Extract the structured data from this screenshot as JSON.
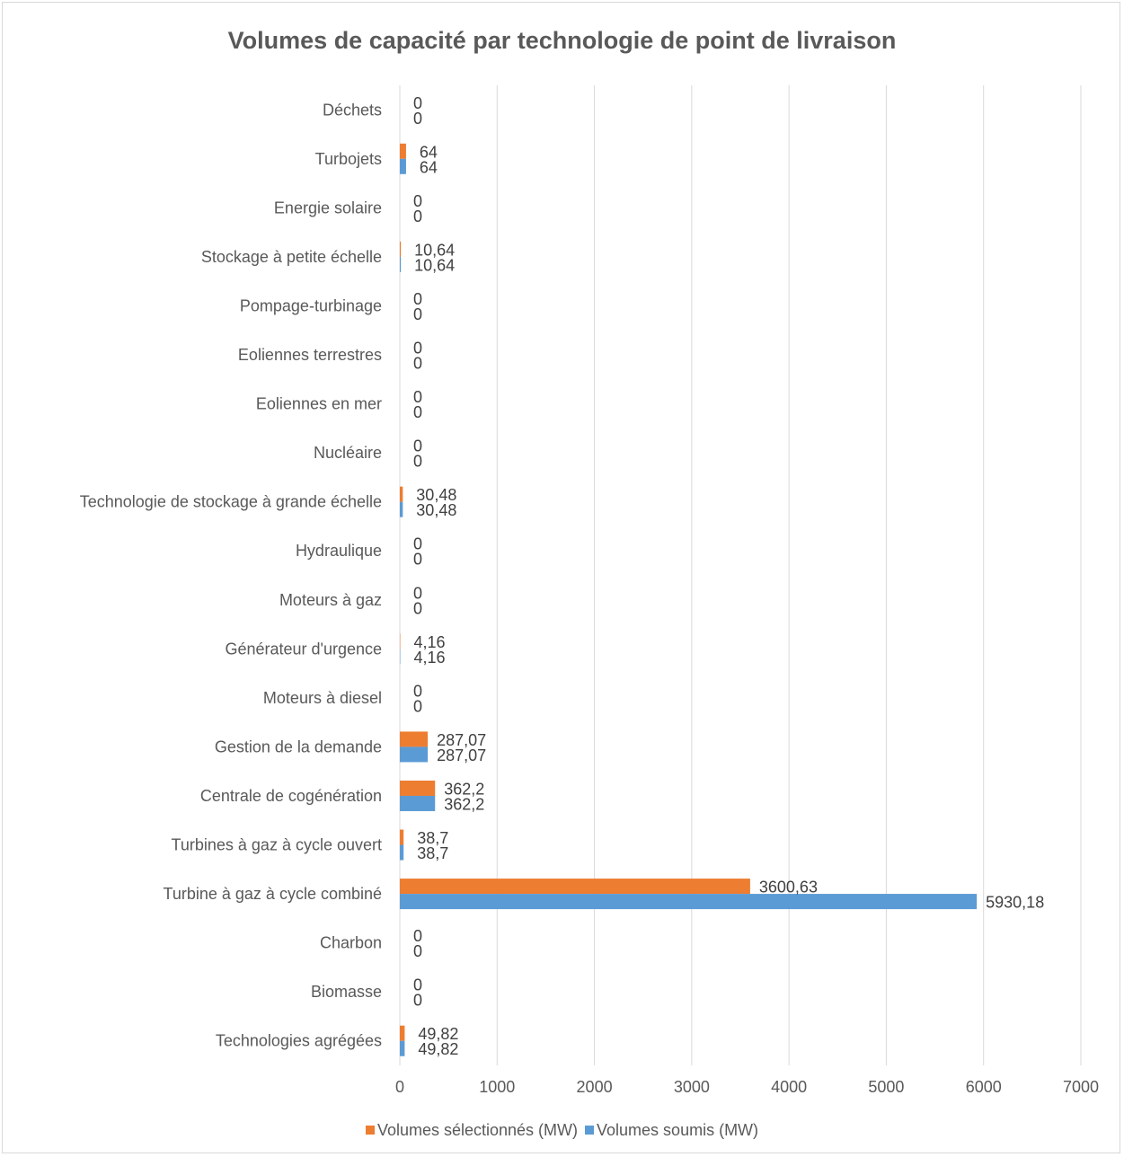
{
  "chart_data": {
    "type": "bar",
    "orientation": "horizontal",
    "title": "Volumes de capacité par technologie de point de livraison",
    "categories": [
      "Déchets",
      "Turbojets",
      "Energie solaire",
      "Stockage à petite échelle",
      "Pompage-turbinage",
      "Eoliennes terrestres",
      "Eoliennes en mer",
      "Nucléaire",
      "Technologie de stockage à grande échelle",
      "Hydraulique",
      "Moteurs à gaz",
      "Générateur d'urgence",
      "Moteurs à diesel",
      "Gestion de la demande",
      "Centrale de cogénération",
      "Turbines à gaz à cycle ouvert",
      "Turbine à gaz à cycle combiné",
      "Charbon",
      "Biomasse",
      "Technologies agrégées"
    ],
    "series": [
      {
        "name": "Volumes sélectionnés (MW)",
        "color": "#ed7d31",
        "values": [
          0,
          64,
          0,
          10.64,
          0,
          0,
          0,
          0,
          30.48,
          0,
          0,
          4.16,
          0,
          287.07,
          362.2,
          38.7,
          3600.63,
          0,
          0,
          49.82
        ],
        "labels": [
          "0",
          "64",
          "0",
          "10,64",
          "0",
          "0",
          "0",
          "0",
          "30,48",
          "0",
          "0",
          "4,16",
          "0",
          "287,07",
          "362,2",
          "38,7",
          "3600,63",
          "0",
          "0",
          "49,82"
        ]
      },
      {
        "name": "Volumes soumis (MW)",
        "color": "#5b9bd5",
        "values": [
          0,
          64,
          0,
          10.64,
          0,
          0,
          0,
          0,
          30.48,
          0,
          0,
          4.16,
          0,
          287.07,
          362.2,
          38.7,
          5930.18,
          0,
          0,
          49.82
        ],
        "labels": [
          "0",
          "64",
          "0",
          "10,64",
          "0",
          "0",
          "0",
          "0",
          "30,48",
          "0",
          "0",
          "4,16",
          "0",
          "287,07",
          "362,2",
          "38,7",
          "5930,18",
          "0",
          "0",
          "49,82"
        ]
      }
    ],
    "xlim": [
      0,
      7000
    ],
    "x_ticks": [
      "0",
      "1000",
      "2000",
      "3000",
      "4000",
      "5000",
      "6000",
      "7000"
    ],
    "grid": "vertical",
    "legend_position": "bottom"
  }
}
